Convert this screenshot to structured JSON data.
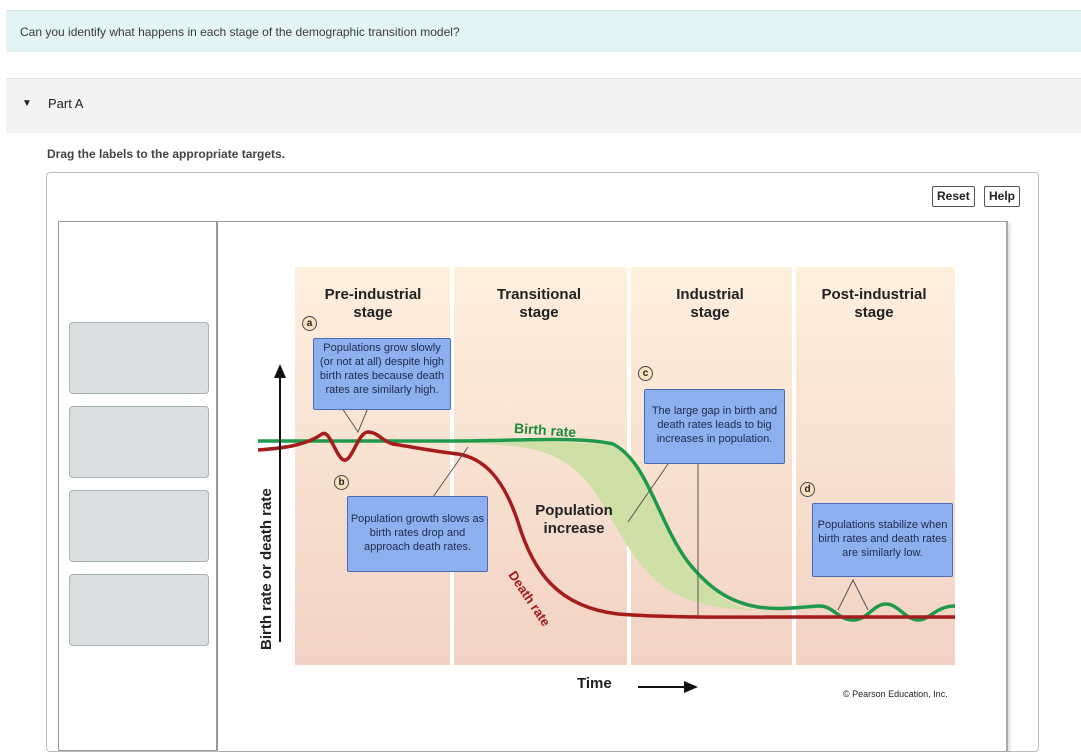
{
  "question": "Can you identify what happens in each stage of the demographic transition model?",
  "part": {
    "caret": "▼",
    "title": "Part A"
  },
  "instructions": "Drag the labels to the appropriate targets.",
  "buttons": {
    "reset": "Reset",
    "help": "Help"
  },
  "label_bank": {
    "slots": 4
  },
  "figure": {
    "stages": [
      {
        "line1": "Pre-industrial",
        "line2": "stage"
      },
      {
        "line1": "Transitional",
        "line2": "stage"
      },
      {
        "line1": "Industrial",
        "line2": "stage"
      },
      {
        "line1": "Post-industrial",
        "line2": "stage"
      }
    ],
    "markers": {
      "a": "a",
      "b": "b",
      "c": "c",
      "d": "d"
    },
    "callouts": {
      "a": "Populations grow slowly (or not at all) despite high birth rates because death rates are similarly high.",
      "b": "Population growth slows as birth rates drop and approach death rates.",
      "c": "The large gap in birth and death rates leads to big increases in population.",
      "d": "Populations stabilize when birth rates and death rates are similarly low."
    },
    "birth_rate_label": "Birth rate",
    "death_rate_label": "Death rate",
    "population_increase": {
      "line1": "Population",
      "line2": "increase"
    },
    "x_axis": "Time",
    "y_axis": "Birth rate or death rate",
    "copyright": "© Pearson Education, Inc.",
    "colors": {
      "birth": "#1e9a4a",
      "death": "#a51c1c",
      "fill": "#cfe0a6",
      "stage_bg": "#f5dcc8"
    }
  }
}
